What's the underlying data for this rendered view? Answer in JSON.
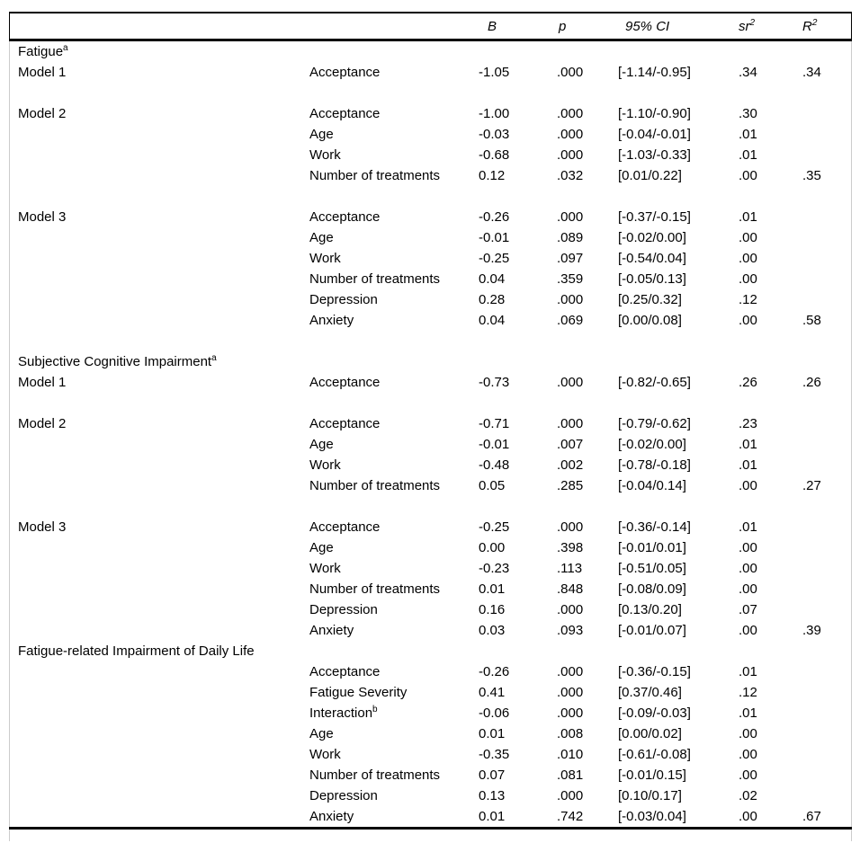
{
  "colors": {
    "background": "#ffffff",
    "text": "#000000",
    "rule": "#000000",
    "body_side_border": "#cccccc"
  },
  "header": {
    "b": "B",
    "p": "p",
    "ci": "95% CI",
    "sr_base": "sr",
    "sr_sup": "2",
    "r_base": "R",
    "r_sup": "2"
  },
  "rows": [
    {
      "t": "s",
      "label": "Fatigue",
      "sup": "a"
    },
    {
      "t": "d",
      "model": "Model 1",
      "pred": "Acceptance",
      "pred_sup": "",
      "b": "-1.05",
      "p": ".000",
      "ci": "[-1.14/-0.95]",
      "sr2": ".34",
      "r2": ".34"
    },
    {
      "t": "x"
    },
    {
      "t": "d",
      "model": "Model 2",
      "pred": "Acceptance",
      "pred_sup": "",
      "b": "-1.00",
      "p": ".000",
      "ci": "[-1.10/-0.90]",
      "sr2": ".30",
      "r2": ""
    },
    {
      "t": "d",
      "model": "",
      "pred": "Age",
      "pred_sup": "",
      "b": "-0.03",
      "p": ".000",
      "ci": "[-0.04/-0.01]",
      "sr2": ".01",
      "r2": ""
    },
    {
      "t": "d",
      "model": "",
      "pred": "Work",
      "pred_sup": "",
      "b": "-0.68",
      "p": ".000",
      "ci": "[-1.03/-0.33]",
      "sr2": ".01",
      "r2": ""
    },
    {
      "t": "d",
      "model": "",
      "pred": "Number of treatments",
      "pred_sup": "",
      "b": "0.12",
      "p": ".032",
      "ci": "[0.01/0.22]",
      "sr2": ".00",
      "r2": ".35"
    },
    {
      "t": "x"
    },
    {
      "t": "d",
      "model": "Model 3",
      "pred": "Acceptance",
      "pred_sup": "",
      "b": "-0.26",
      "p": ".000",
      "ci": "[-0.37/-0.15]",
      "sr2": ".01",
      "r2": ""
    },
    {
      "t": "d",
      "model": "",
      "pred": "Age",
      "pred_sup": "",
      "b": "-0.01",
      "p": ".089",
      "ci": "[-0.02/0.00]",
      "sr2": ".00",
      "r2": ""
    },
    {
      "t": "d",
      "model": "",
      "pred": "Work",
      "pred_sup": "",
      "b": "-0.25",
      "p": ".097",
      "ci": "[-0.54/0.04]",
      "sr2": ".00",
      "r2": ""
    },
    {
      "t": "d",
      "model": "",
      "pred": "Number of treatments",
      "pred_sup": "",
      "b": "0.04",
      "p": ".359",
      "ci": "[-0.05/0.13]",
      "sr2": ".00",
      "r2": ""
    },
    {
      "t": "d",
      "model": "",
      "pred": "Depression",
      "pred_sup": "",
      "b": "0.28",
      "p": ".000",
      "ci": "[0.25/0.32]",
      "sr2": ".12",
      "r2": ""
    },
    {
      "t": "d",
      "model": "",
      "pred": "Anxiety",
      "pred_sup": "",
      "b": "0.04",
      "p": ".069",
      "ci": "[0.00/0.08]",
      "sr2": ".00",
      "r2": ".58"
    },
    {
      "t": "x"
    },
    {
      "t": "s",
      "label": "Subjective Cognitive Impairment",
      "sup": "a"
    },
    {
      "t": "d",
      "model": "Model 1",
      "pred": "Acceptance",
      "pred_sup": "",
      "b": "-0.73",
      "p": ".000",
      "ci": "[-0.82/-0.65]",
      "sr2": ".26",
      "r2": ".26"
    },
    {
      "t": "x"
    },
    {
      "t": "d",
      "model": "Model 2",
      "pred": "Acceptance",
      "pred_sup": "",
      "b": "-0.71",
      "p": ".000",
      "ci": "[-0.79/-0.62]",
      "sr2": ".23",
      "r2": ""
    },
    {
      "t": "d",
      "model": "",
      "pred": "Age",
      "pred_sup": "",
      "b": "-0.01",
      "p": ".007",
      "ci": "[-0.02/0.00]",
      "sr2": ".01",
      "r2": ""
    },
    {
      "t": "d",
      "model": "",
      "pred": "Work",
      "pred_sup": "",
      "b": "-0.48",
      "p": ".002",
      "ci": "[-0.78/-0.18]",
      "sr2": ".01",
      "r2": ""
    },
    {
      "t": "d",
      "model": "",
      "pred": "Number of treatments",
      "pred_sup": "",
      "b": "0.05",
      "p": ".285",
      "ci": "[-0.04/0.14]",
      "sr2": ".00",
      "r2": ".27"
    },
    {
      "t": "x"
    },
    {
      "t": "d",
      "model": "Model 3",
      "pred": "Acceptance",
      "pred_sup": "",
      "b": "-0.25",
      "p": ".000",
      "ci": "[-0.36/-0.14]",
      "sr2": ".01",
      "r2": ""
    },
    {
      "t": "d",
      "model": "",
      "pred": "Age",
      "pred_sup": "",
      "b": "0.00",
      "p": ".398",
      "ci": "[-0.01/0.01]",
      "sr2": ".00",
      "r2": ""
    },
    {
      "t": "d",
      "model": "",
      "pred": "Work",
      "pred_sup": "",
      "b": "-0.23",
      "p": ".113",
      "ci": "[-0.51/0.05]",
      "sr2": ".00",
      "r2": ""
    },
    {
      "t": "d",
      "model": "",
      "pred": "Number of treatments",
      "pred_sup": "",
      "b": "0.01",
      "p": ".848",
      "ci": "[-0.08/0.09]",
      "sr2": ".00",
      "r2": ""
    },
    {
      "t": "d",
      "model": "",
      "pred": "Depression",
      "pred_sup": "",
      "b": "0.16",
      "p": ".000",
      "ci": "[0.13/0.20]",
      "sr2": ".07",
      "r2": ""
    },
    {
      "t": "d",
      "model": "",
      "pred": "Anxiety",
      "pred_sup": "",
      "b": "0.03",
      "p": ".093",
      "ci": "[-0.01/0.07]",
      "sr2": ".00",
      "r2": ".39"
    },
    {
      "t": "s",
      "label": "Fatigue-related Impairment of Daily Life",
      "sup": ""
    },
    {
      "t": "d",
      "model": "",
      "pred": "Acceptance",
      "pred_sup": "",
      "b": "-0.26",
      "p": ".000",
      "ci": "[-0.36/-0.15]",
      "sr2": ".01",
      "r2": ""
    },
    {
      "t": "d",
      "model": "",
      "pred": "Fatigue Severity",
      "pred_sup": "",
      "b": "0.41",
      "p": ".000",
      "ci": "[0.37/0.46]",
      "sr2": ".12",
      "r2": ""
    },
    {
      "t": "d",
      "model": "",
      "pred": "Interaction",
      "pred_sup": "b",
      "b": "-0.06",
      "p": ".000",
      "ci": "[-0.09/-0.03]",
      "sr2": ".01",
      "r2": ""
    },
    {
      "t": "d",
      "model": "",
      "pred": "Age",
      "pred_sup": "",
      "b": "0.01",
      "p": ".008",
      "ci": "[0.00/0.02]",
      "sr2": ".00",
      "r2": ""
    },
    {
      "t": "d",
      "model": "",
      "pred": "Work",
      "pred_sup": "",
      "b": "-0.35",
      "p": ".010",
      "ci": "[-0.61/-0.08]",
      "sr2": ".00",
      "r2": ""
    },
    {
      "t": "d",
      "model": "",
      "pred": "Number of treatments",
      "pred_sup": "",
      "b": "0.07",
      "p": ".081",
      "ci": "[-0.01/0.15]",
      "sr2": ".00",
      "r2": ""
    },
    {
      "t": "d",
      "model": "",
      "pred": "Depression",
      "pred_sup": "",
      "b": "0.13",
      "p": ".000",
      "ci": "[0.10/0.17]",
      "sr2": ".02",
      "r2": ""
    },
    {
      "t": "d",
      "model": "",
      "pred": "Anxiety",
      "pred_sup": "",
      "b": "0.01",
      "p": ".742",
      "ci": "[-0.03/0.04]",
      "sr2": ".00",
      "r2": ".67"
    }
  ]
}
